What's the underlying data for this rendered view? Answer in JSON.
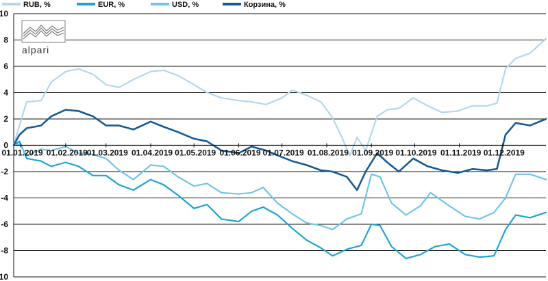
{
  "logo": {
    "text": "alpari"
  },
  "chart_data": {
    "type": "line",
    "title": "",
    "xlabel": "",
    "ylabel": "",
    "ylim": [
      -10,
      10
    ],
    "yticks": [
      10,
      8,
      6,
      4,
      2,
      0,
      -2,
      -4,
      -6,
      -8,
      -10
    ],
    "xlim": [
      "2018-12-27",
      "2019-12-31"
    ],
    "xticks": [
      "01.01.2019",
      "01.02.2019",
      "01.03.2019",
      "01.04.2019",
      "01.05.2019",
      "01.06.2019",
      "01.07.2019",
      "01.08.2019",
      "01.09.2019",
      "01.10.2019",
      "01.11.2019",
      "01.12.2019"
    ],
    "grid": {
      "horizontal": true,
      "vertical": false
    },
    "legend": "top",
    "series": [
      {
        "name": "RUB, %",
        "color": "#b4d7ea",
        "width": 2.2,
        "points": [
          [
            "2018-12-27",
            0
          ],
          [
            "2018-12-31",
            1.5
          ],
          [
            "2019-01-05",
            3.3
          ],
          [
            "2019-01-15",
            3.4
          ],
          [
            "2019-01-22",
            4.8
          ],
          [
            "2019-02-01",
            5.6
          ],
          [
            "2019-02-10",
            5.8
          ],
          [
            "2019-02-20",
            5.4
          ],
          [
            "2019-03-01",
            4.6
          ],
          [
            "2019-03-10",
            4.4
          ],
          [
            "2019-03-20",
            5.0
          ],
          [
            "2019-04-01",
            5.6
          ],
          [
            "2019-04-10",
            5.7
          ],
          [
            "2019-04-20",
            5.3
          ],
          [
            "2019-05-01",
            4.6
          ],
          [
            "2019-05-10",
            4.0
          ],
          [
            "2019-05-20",
            3.6
          ],
          [
            "2019-06-01",
            3.4
          ],
          [
            "2019-06-10",
            3.3
          ],
          [
            "2019-06-20",
            3.1
          ],
          [
            "2019-07-01",
            3.6
          ],
          [
            "2019-07-08",
            4.2
          ],
          [
            "2019-07-18",
            3.8
          ],
          [
            "2019-07-28",
            3.3
          ],
          [
            "2019-08-05",
            2.1
          ],
          [
            "2019-08-12",
            0.5
          ],
          [
            "2019-08-17",
            -0.8
          ],
          [
            "2019-08-22",
            0.6
          ],
          [
            "2019-08-28",
            -0.4
          ],
          [
            "2019-09-05",
            2.2
          ],
          [
            "2019-09-12",
            2.7
          ],
          [
            "2019-09-20",
            2.8
          ],
          [
            "2019-09-30",
            3.6
          ],
          [
            "2019-10-10",
            3.0
          ],
          [
            "2019-10-20",
            2.5
          ],
          [
            "2019-10-31",
            2.6
          ],
          [
            "2019-11-10",
            3.0
          ],
          [
            "2019-11-20",
            3.0
          ],
          [
            "2019-11-27",
            3.2
          ],
          [
            "2019-12-03",
            5.8
          ],
          [
            "2019-12-10",
            6.6
          ],
          [
            "2019-12-20",
            7.0
          ],
          [
            "2019-12-31",
            8.1
          ]
        ]
      },
      {
        "name": "EUR, %",
        "color": "#1fa3d4",
        "width": 2.2,
        "points": [
          [
            "2018-12-27",
            0
          ],
          [
            "2018-12-31",
            0.3
          ],
          [
            "2019-01-05",
            -1.0
          ],
          [
            "2019-01-15",
            -1.2
          ],
          [
            "2019-01-22",
            -1.6
          ],
          [
            "2019-02-01",
            -1.3
          ],
          [
            "2019-02-10",
            -1.6
          ],
          [
            "2019-02-20",
            -2.3
          ],
          [
            "2019-03-01",
            -2.3
          ],
          [
            "2019-03-10",
            -3.0
          ],
          [
            "2019-03-20",
            -3.4
          ],
          [
            "2019-04-01",
            -2.6
          ],
          [
            "2019-04-10",
            -3.0
          ],
          [
            "2019-04-20",
            -3.8
          ],
          [
            "2019-05-01",
            -4.8
          ],
          [
            "2019-05-10",
            -4.5
          ],
          [
            "2019-05-20",
            -5.6
          ],
          [
            "2019-06-01",
            -5.8
          ],
          [
            "2019-06-10",
            -5.0
          ],
          [
            "2019-06-18",
            -4.7
          ],
          [
            "2019-06-28",
            -5.3
          ],
          [
            "2019-07-08",
            -6.3
          ],
          [
            "2019-07-18",
            -7.2
          ],
          [
            "2019-07-28",
            -7.8
          ],
          [
            "2019-08-05",
            -8.4
          ],
          [
            "2019-08-15",
            -7.9
          ],
          [
            "2019-08-25",
            -7.6
          ],
          [
            "2019-09-01",
            -6.0
          ],
          [
            "2019-09-07",
            -6.1
          ],
          [
            "2019-09-15",
            -7.7
          ],
          [
            "2019-09-25",
            -8.6
          ],
          [
            "2019-10-05",
            -8.3
          ],
          [
            "2019-10-15",
            -7.7
          ],
          [
            "2019-10-25",
            -7.5
          ],
          [
            "2019-11-05",
            -8.3
          ],
          [
            "2019-11-15",
            -8.5
          ],
          [
            "2019-11-25",
            -8.4
          ],
          [
            "2019-12-03",
            -6.4
          ],
          [
            "2019-12-10",
            -5.3
          ],
          [
            "2019-12-20",
            -5.5
          ],
          [
            "2019-12-31",
            -5.1
          ]
        ]
      },
      {
        "name": "USD, %",
        "color": "#73c3e8",
        "width": 2.2,
        "points": [
          [
            "2018-12-27",
            0
          ],
          [
            "2018-12-31",
            0.1
          ],
          [
            "2019-01-05",
            -0.8
          ],
          [
            "2019-01-15",
            -0.3
          ],
          [
            "2019-01-22",
            -0.4
          ],
          [
            "2019-02-01",
            -0.1
          ],
          [
            "2019-02-10",
            -0.6
          ],
          [
            "2019-02-20",
            -0.7
          ],
          [
            "2019-03-01",
            -1.0
          ],
          [
            "2019-03-10",
            -1.9
          ],
          [
            "2019-03-20",
            -2.6
          ],
          [
            "2019-04-01",
            -1.5
          ],
          [
            "2019-04-10",
            -1.6
          ],
          [
            "2019-04-20",
            -2.4
          ],
          [
            "2019-05-01",
            -3.1
          ],
          [
            "2019-05-10",
            -2.9
          ],
          [
            "2019-05-20",
            -3.6
          ],
          [
            "2019-06-01",
            -3.7
          ],
          [
            "2019-06-10",
            -3.6
          ],
          [
            "2019-06-18",
            -3.2
          ],
          [
            "2019-06-28",
            -4.4
          ],
          [
            "2019-07-08",
            -5.2
          ],
          [
            "2019-07-18",
            -5.9
          ],
          [
            "2019-07-28",
            -6.1
          ],
          [
            "2019-08-05",
            -6.4
          ],
          [
            "2019-08-15",
            -5.6
          ],
          [
            "2019-08-25",
            -5.2
          ],
          [
            "2019-09-01",
            -2.2
          ],
          [
            "2019-09-07",
            -2.4
          ],
          [
            "2019-09-15",
            -4.4
          ],
          [
            "2019-09-25",
            -5.3
          ],
          [
            "2019-10-05",
            -4.6
          ],
          [
            "2019-10-12",
            -3.6
          ],
          [
            "2019-10-25",
            -4.6
          ],
          [
            "2019-11-05",
            -5.4
          ],
          [
            "2019-11-15",
            -5.6
          ],
          [
            "2019-11-25",
            -5.1
          ],
          [
            "2019-12-03",
            -4.0
          ],
          [
            "2019-12-10",
            -2.2
          ],
          [
            "2019-12-20",
            -2.2
          ],
          [
            "2019-12-31",
            -2.6
          ]
        ]
      },
      {
        "name": "Корзина, %",
        "color": "#165a95",
        "width": 2.6,
        "points": [
          [
            "2018-12-27",
            0
          ],
          [
            "2018-12-31",
            0.8
          ],
          [
            "2019-01-05",
            1.3
          ],
          [
            "2019-01-15",
            1.5
          ],
          [
            "2019-01-22",
            2.2
          ],
          [
            "2019-02-01",
            2.7
          ],
          [
            "2019-02-10",
            2.6
          ],
          [
            "2019-02-20",
            2.2
          ],
          [
            "2019-03-01",
            1.5
          ],
          [
            "2019-03-10",
            1.5
          ],
          [
            "2019-03-20",
            1.2
          ],
          [
            "2019-04-01",
            1.8
          ],
          [
            "2019-04-10",
            1.4
          ],
          [
            "2019-04-20",
            1.0
          ],
          [
            "2019-05-01",
            0.5
          ],
          [
            "2019-05-10",
            0.3
          ],
          [
            "2019-05-20",
            -0.4
          ],
          [
            "2019-06-01",
            -0.6
          ],
          [
            "2019-06-10",
            -0.1
          ],
          [
            "2019-06-20",
            -0.4
          ],
          [
            "2019-07-01",
            -0.9
          ],
          [
            "2019-07-08",
            -1.2
          ],
          [
            "2019-07-18",
            -1.5
          ],
          [
            "2019-07-28",
            -1.9
          ],
          [
            "2019-08-05",
            -2.0
          ],
          [
            "2019-08-15",
            -2.4
          ],
          [
            "2019-08-22",
            -3.4
          ],
          [
            "2019-08-28",
            -2.0
          ],
          [
            "2019-09-05",
            -0.6
          ],
          [
            "2019-09-12",
            -1.3
          ],
          [
            "2019-09-20",
            -2.0
          ],
          [
            "2019-09-30",
            -1.0
          ],
          [
            "2019-10-10",
            -1.6
          ],
          [
            "2019-10-20",
            -1.9
          ],
          [
            "2019-10-31",
            -2.1
          ],
          [
            "2019-11-10",
            -1.8
          ],
          [
            "2019-11-20",
            -1.9
          ],
          [
            "2019-11-27",
            -1.8
          ],
          [
            "2019-12-03",
            0.8
          ],
          [
            "2019-12-10",
            1.7
          ],
          [
            "2019-12-20",
            1.5
          ],
          [
            "2019-12-31",
            2.0
          ]
        ]
      }
    ]
  }
}
